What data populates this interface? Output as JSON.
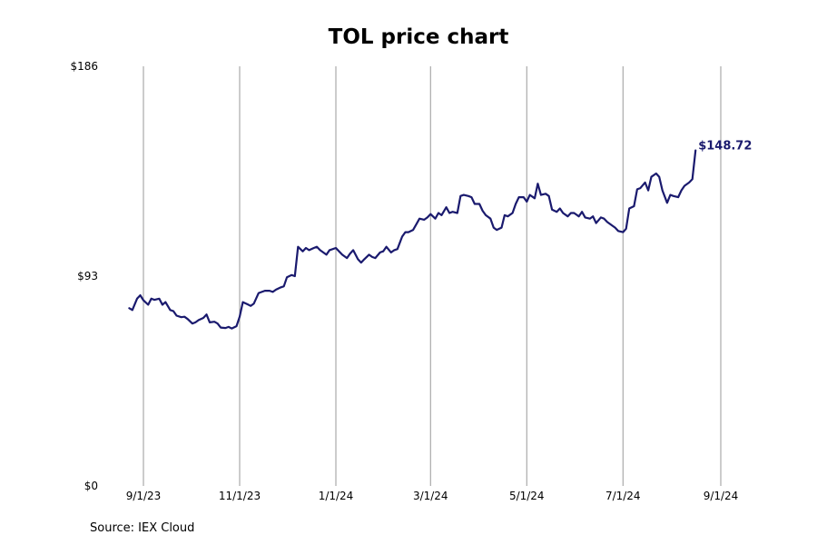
{
  "chart_data": {
    "type": "line",
    "title": "TOL price chart",
    "xlabel": "",
    "ylabel": "",
    "source": "Source: IEX Cloud",
    "x_ticks": [
      "9/1/23",
      "11/1/23",
      "1/1/24",
      "3/1/24",
      "5/1/24",
      "7/1/24",
      "9/1/24"
    ],
    "y_ticks": [
      "$0",
      "$93",
      "$186"
    ],
    "ylim": [
      0,
      186
    ],
    "xlim": [
      "2023-08-23",
      "2024-09-01"
    ],
    "grid": "vertical",
    "last_value_label": "$148.72",
    "line_color": "#1a1a6e",
    "series": [
      {
        "values": [
          [
            "2023-08-23",
            78.8
          ],
          [
            "2023-08-25",
            78.0
          ],
          [
            "2023-08-28",
            83.0
          ],
          [
            "2023-08-30",
            84.5
          ],
          [
            "2023-09-01",
            82.3
          ],
          [
            "2023-09-04",
            80.3
          ],
          [
            "2023-09-06",
            83.0
          ],
          [
            "2023-09-08",
            82.5
          ],
          [
            "2023-09-11",
            83.0
          ],
          [
            "2023-09-13",
            80.3
          ],
          [
            "2023-09-15",
            81.5
          ],
          [
            "2023-09-18",
            78.0
          ],
          [
            "2023-09-20",
            77.5
          ],
          [
            "2023-09-22",
            75.5
          ],
          [
            "2023-09-25",
            74.8
          ],
          [
            "2023-09-27",
            75.0
          ],
          [
            "2023-09-29",
            74.0
          ],
          [
            "2023-10-02",
            72.0
          ],
          [
            "2023-10-04",
            72.5
          ],
          [
            "2023-10-06",
            73.5
          ],
          [
            "2023-10-09",
            74.5
          ],
          [
            "2023-10-11",
            76.0
          ],
          [
            "2023-10-13",
            72.5
          ],
          [
            "2023-10-16",
            72.8
          ],
          [
            "2023-10-18",
            72.0
          ],
          [
            "2023-10-20",
            70.2
          ],
          [
            "2023-10-23",
            70.0
          ],
          [
            "2023-10-25",
            70.5
          ],
          [
            "2023-10-27",
            69.8
          ],
          [
            "2023-10-30",
            70.8
          ],
          [
            "2023-11-01",
            75.0
          ],
          [
            "2023-11-03",
            81.5
          ],
          [
            "2023-11-06",
            80.5
          ],
          [
            "2023-11-08",
            79.8
          ],
          [
            "2023-11-10",
            80.8
          ],
          [
            "2023-11-13",
            85.5
          ],
          [
            "2023-11-15",
            86.0
          ],
          [
            "2023-11-17",
            86.5
          ],
          [
            "2023-11-20",
            86.5
          ],
          [
            "2023-11-22",
            86.0
          ],
          [
            "2023-11-24",
            87.0
          ],
          [
            "2023-11-27",
            88.0
          ],
          [
            "2023-11-29",
            88.5
          ],
          [
            "2023-12-01",
            92.5
          ],
          [
            "2023-12-04",
            93.5
          ],
          [
            "2023-12-06",
            93.0
          ],
          [
            "2023-12-08",
            106.0
          ],
          [
            "2023-12-11",
            104.0
          ],
          [
            "2023-12-13",
            105.5
          ],
          [
            "2023-12-15",
            104.5
          ],
          [
            "2023-12-18",
            105.5
          ],
          [
            "2023-12-20",
            106.0
          ],
          [
            "2023-12-22",
            104.5
          ],
          [
            "2023-12-26",
            102.5
          ],
          [
            "2023-12-28",
            104.5
          ],
          [
            "2024-01-01",
            105.5
          ],
          [
            "2024-01-03",
            104.0
          ],
          [
            "2024-01-05",
            102.5
          ],
          [
            "2024-01-08",
            101.0
          ],
          [
            "2024-01-10",
            103.0
          ],
          [
            "2024-01-12",
            104.5
          ],
          [
            "2024-01-15",
            100.5
          ],
          [
            "2024-01-17",
            99.0
          ],
          [
            "2024-01-19",
            100.5
          ],
          [
            "2024-01-22",
            102.5
          ],
          [
            "2024-01-24",
            101.5
          ],
          [
            "2024-01-26",
            101.0
          ],
          [
            "2024-01-29",
            103.5
          ],
          [
            "2024-01-31",
            104.0
          ],
          [
            "2024-02-02",
            106.0
          ],
          [
            "2024-02-05",
            103.5
          ],
          [
            "2024-02-07",
            104.5
          ],
          [
            "2024-02-09",
            105.0
          ],
          [
            "2024-02-12",
            110.5
          ],
          [
            "2024-02-14",
            112.5
          ],
          [
            "2024-02-16",
            112.5
          ],
          [
            "2024-02-19",
            113.5
          ],
          [
            "2024-02-21",
            116.0
          ],
          [
            "2024-02-23",
            118.5
          ],
          [
            "2024-02-26",
            118.0
          ],
          [
            "2024-02-28",
            119.0
          ],
          [
            "2024-03-01",
            120.5
          ],
          [
            "2024-03-04",
            118.5
          ],
          [
            "2024-03-06",
            121.0
          ],
          [
            "2024-03-08",
            120.0
          ],
          [
            "2024-03-11",
            123.5
          ],
          [
            "2024-03-13",
            121.0
          ],
          [
            "2024-03-15",
            121.5
          ],
          [
            "2024-03-18",
            121.0
          ],
          [
            "2024-03-20",
            128.5
          ],
          [
            "2024-03-22",
            129.0
          ],
          [
            "2024-03-25",
            128.5
          ],
          [
            "2024-03-27",
            128.0
          ],
          [
            "2024-03-29",
            125.0
          ],
          [
            "2024-04-01",
            125.0
          ],
          [
            "2024-04-03",
            122.0
          ],
          [
            "2024-04-05",
            120.0
          ],
          [
            "2024-04-08",
            118.5
          ],
          [
            "2024-04-10",
            114.5
          ],
          [
            "2024-04-12",
            113.5
          ],
          [
            "2024-04-15",
            114.5
          ],
          [
            "2024-04-17",
            120.0
          ],
          [
            "2024-04-19",
            119.5
          ],
          [
            "2024-04-22",
            121.0
          ],
          [
            "2024-04-24",
            125.0
          ],
          [
            "2024-04-26",
            128.0
          ],
          [
            "2024-04-29",
            128.0
          ],
          [
            "2024-05-01",
            126.0
          ],
          [
            "2024-05-03",
            129.0
          ],
          [
            "2024-05-06",
            127.5
          ],
          [
            "2024-05-08",
            134.0
          ],
          [
            "2024-05-10",
            129.0
          ],
          [
            "2024-05-13",
            129.5
          ],
          [
            "2024-05-15",
            128.5
          ],
          [
            "2024-05-17",
            122.5
          ],
          [
            "2024-05-20",
            121.5
          ],
          [
            "2024-05-22",
            123.0
          ],
          [
            "2024-05-24",
            121.0
          ],
          [
            "2024-05-27",
            119.5
          ],
          [
            "2024-05-29",
            121.0
          ],
          [
            "2024-05-31",
            121.0
          ],
          [
            "2024-06-03",
            119.5
          ],
          [
            "2024-06-05",
            121.5
          ],
          [
            "2024-06-07",
            119.0
          ],
          [
            "2024-06-10",
            118.5
          ],
          [
            "2024-06-12",
            119.5
          ],
          [
            "2024-06-14",
            116.5
          ],
          [
            "2024-06-17",
            119.0
          ],
          [
            "2024-06-19",
            118.5
          ],
          [
            "2024-06-21",
            117.0
          ],
          [
            "2024-06-24",
            115.5
          ],
          [
            "2024-06-26",
            114.5
          ],
          [
            "2024-06-28",
            113.0
          ],
          [
            "2024-07-01",
            112.5
          ],
          [
            "2024-07-03",
            114.0
          ],
          [
            "2024-07-05",
            123.0
          ],
          [
            "2024-07-08",
            124.0
          ],
          [
            "2024-07-10",
            131.5
          ],
          [
            "2024-07-12",
            132.0
          ],
          [
            "2024-07-15",
            134.5
          ],
          [
            "2024-07-17",
            131.0
          ],
          [
            "2024-07-19",
            137.0
          ],
          [
            "2024-07-22",
            138.5
          ],
          [
            "2024-07-24",
            137.0
          ],
          [
            "2024-07-26",
            131.0
          ],
          [
            "2024-07-29",
            125.5
          ],
          [
            "2024-07-31",
            129.0
          ],
          [
            "2024-08-02",
            128.5
          ],
          [
            "2024-08-05",
            128.0
          ],
          [
            "2024-08-07",
            131.0
          ],
          [
            "2024-08-09",
            133.0
          ],
          [
            "2024-08-12",
            134.5
          ],
          [
            "2024-08-14",
            136.0
          ],
          [
            "2024-08-16",
            148.72
          ]
        ]
      }
    ]
  }
}
